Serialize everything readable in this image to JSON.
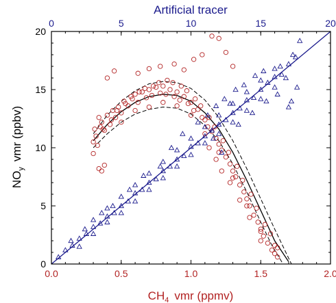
{
  "chart_data": {
    "type": "scatter",
    "top_axis": {
      "label": "Artificial tracer",
      "range": [
        0,
        20
      ],
      "ticks": [
        "0",
        "5",
        "10",
        "15",
        "20"
      ],
      "color": "#1a1a8c"
    },
    "bottom_axis": {
      "label_main": "CH",
      "label_sub": "4",
      "label_rest": "vmr (ppmv)",
      "range": [
        0.0,
        2.0
      ],
      "ticks": [
        "0.0",
        "0.5",
        "1.0",
        "1.5",
        "2.0"
      ],
      "color": "#b22222"
    },
    "left_axis": {
      "label_main": "NO",
      "label_sub": "y",
      "label_rest": "vmr (ppbv)",
      "range": [
        0,
        20
      ],
      "ticks": [
        "0",
        "5",
        "10",
        "15",
        "20"
      ],
      "color": "#000000"
    },
    "series": [
      {
        "marker": "circle",
        "x_axis": "bottom",
        "color": "#b22222",
        "points": [
          [
            0.3,
            10.5
          ],
          [
            0.32,
            11.0
          ],
          [
            0.33,
            10.2
          ],
          [
            0.35,
            11.8
          ],
          [
            0.36,
            12.2
          ],
          [
            0.38,
            11.5
          ],
          [
            0.4,
            12.8
          ],
          [
            0.42,
            12.0
          ],
          [
            0.44,
            13.2
          ],
          [
            0.46,
            12.6
          ],
          [
            0.48,
            13.5
          ],
          [
            0.5,
            13.0
          ],
          [
            0.52,
            14.0
          ],
          [
            0.55,
            13.6
          ],
          [
            0.58,
            14.2
          ],
          [
            0.6,
            14.6
          ],
          [
            0.62,
            13.9
          ],
          [
            0.65,
            14.8
          ],
          [
            0.68,
            14.3
          ],
          [
            0.7,
            15.0
          ],
          [
            0.72,
            14.5
          ],
          [
            0.75,
            15.2
          ],
          [
            0.78,
            14.7
          ],
          [
            0.8,
            15.3
          ],
          [
            0.82,
            14.6
          ],
          [
            0.85,
            15.0
          ],
          [
            0.88,
            14.4
          ],
          [
            0.9,
            14.8
          ],
          [
            0.92,
            14.1
          ],
          [
            0.95,
            14.4
          ],
          [
            0.98,
            13.8
          ],
          [
            1.0,
            13.9
          ],
          [
            1.02,
            13.2
          ],
          [
            1.05,
            13.3
          ],
          [
            1.08,
            12.6
          ],
          [
            1.1,
            12.4
          ],
          [
            1.12,
            11.8
          ],
          [
            1.15,
            11.4
          ],
          [
            1.18,
            10.8
          ],
          [
            1.2,
            10.3
          ],
          [
            1.22,
            9.8
          ],
          [
            1.25,
            9.2
          ],
          [
            1.28,
            8.6
          ],
          [
            1.3,
            8.0
          ],
          [
            1.32,
            7.5
          ],
          [
            1.35,
            6.8
          ],
          [
            1.38,
            6.2
          ],
          [
            1.4,
            5.6
          ],
          [
            1.42,
            5.0
          ],
          [
            1.45,
            4.2
          ],
          [
            1.48,
            3.6
          ],
          [
            1.5,
            3.0
          ],
          [
            1.52,
            2.4
          ],
          [
            1.55,
            1.8
          ],
          [
            1.58,
            1.2
          ],
          [
            1.6,
            0.9
          ],
          [
            1.62,
            1.4
          ],
          [
            1.57,
            2.6
          ],
          [
            1.53,
            3.4
          ],
          [
            1.47,
            4.8
          ],
          [
            1.43,
            6.0
          ],
          [
            1.37,
            7.2
          ],
          [
            1.33,
            8.4
          ],
          [
            1.27,
            9.6
          ],
          [
            1.23,
            10.6
          ],
          [
            1.17,
            11.8
          ],
          [
            1.13,
            12.6
          ],
          [
            1.07,
            13.6
          ],
          [
            1.03,
            14.2
          ],
          [
            0.97,
            14.9
          ],
          [
            0.93,
            15.3
          ],
          [
            0.87,
            15.6
          ],
          [
            0.83,
            15.8
          ],
          [
            0.77,
            15.6
          ],
          [
            0.73,
            15.3
          ],
          [
            0.67,
            15.1
          ],
          [
            0.63,
            14.8
          ],
          [
            0.57,
            14.4
          ],
          [
            0.53,
            13.8
          ],
          [
            0.47,
            13.2
          ],
          [
            0.43,
            12.4
          ],
          [
            0.37,
            11.6
          ],
          [
            0.34,
            8.2
          ],
          [
            0.36,
            8.0
          ],
          [
            0.38,
            8.5
          ],
          [
            0.4,
            16.0
          ],
          [
            0.45,
            16.6
          ],
          [
            0.62,
            16.4
          ],
          [
            0.7,
            16.8
          ],
          [
            0.78,
            17.0
          ],
          [
            0.88,
            17.2
          ],
          [
            0.95,
            16.7
          ],
          [
            1.02,
            17.6
          ],
          [
            1.08,
            18.0
          ],
          [
            1.15,
            19.6
          ],
          [
            1.2,
            19.4
          ],
          [
            1.25,
            18.2
          ],
          [
            1.3,
            17.0
          ],
          [
            1.13,
            10.0
          ],
          [
            1.18,
            9.0
          ],
          [
            1.22,
            8.0
          ],
          [
            1.28,
            7.0
          ],
          [
            1.35,
            5.5
          ],
          [
            1.42,
            4.0
          ],
          [
            1.5,
            2.0
          ],
          [
            1.62,
            0.6
          ],
          [
            0.3,
            9.5
          ],
          [
            0.31,
            11.6
          ],
          [
            0.34,
            12.6
          ],
          [
            0.5,
            12.2
          ],
          [
            0.6,
            13.2
          ],
          [
            0.7,
            13.5
          ],
          [
            0.8,
            13.9
          ],
          [
            0.9,
            13.6
          ],
          [
            1.0,
            12.8
          ],
          [
            1.1,
            11.2
          ],
          [
            1.2,
            9.6
          ],
          [
            1.3,
            7.4
          ],
          [
            1.4,
            5.0
          ],
          [
            1.5,
            2.8
          ],
          [
            1.6,
            1.6
          ]
        ]
      },
      {
        "marker": "triangle",
        "x_axis": "top",
        "color": "#1a1a8c",
        "points": [
          [
            0.5,
            0.6
          ],
          [
            1.0,
            1.2
          ],
          [
            1.5,
            1.6
          ],
          [
            2.0,
            2.2
          ],
          [
            2.5,
            2.6
          ],
          [
            3.0,
            3.2
          ],
          [
            3.5,
            3.5
          ],
          [
            4.0,
            4.1
          ],
          [
            4.5,
            4.4
          ],
          [
            5.0,
            5.0
          ],
          [
            5.5,
            5.4
          ],
          [
            6.0,
            6.1
          ],
          [
            6.5,
            6.4
          ],
          [
            7.0,
            7.0
          ],
          [
            7.5,
            7.3
          ],
          [
            8.0,
            8.0
          ],
          [
            8.5,
            8.4
          ],
          [
            9.0,
            9.0
          ],
          [
            9.5,
            9.3
          ],
          [
            10.0,
            10.1
          ],
          [
            10.5,
            10.4
          ],
          [
            11.0,
            11.0
          ],
          [
            11.5,
            11.5
          ],
          [
            12.0,
            12.0
          ],
          [
            12.5,
            12.4
          ],
          [
            13.0,
            13.0
          ],
          [
            13.5,
            13.4
          ],
          [
            14.0,
            14.1
          ],
          [
            14.5,
            14.3
          ],
          [
            15.0,
            15.0
          ],
          [
            15.5,
            15.6
          ],
          [
            16.0,
            16.1
          ],
          [
            16.5,
            16.3
          ],
          [
            17.0,
            17.2
          ],
          [
            17.5,
            17.8
          ],
          [
            2.0,
            1.5
          ],
          [
            3.0,
            2.6
          ],
          [
            4.0,
            3.6
          ],
          [
            5.0,
            4.4
          ],
          [
            6.0,
            5.4
          ],
          [
            7.0,
            6.4
          ],
          [
            8.0,
            7.4
          ],
          [
            9.0,
            8.4
          ],
          [
            10.0,
            9.4
          ],
          [
            11.0,
            10.4
          ],
          [
            12.0,
            11.2
          ],
          [
            13.0,
            12.2
          ],
          [
            14.0,
            13.2
          ],
          [
            15.0,
            14.2
          ],
          [
            16.0,
            15.2
          ],
          [
            3.0,
            3.8
          ],
          [
            4.0,
            4.8
          ],
          [
            5.0,
            5.8
          ],
          [
            6.0,
            6.8
          ],
          [
            7.0,
            7.8
          ],
          [
            8.0,
            8.8
          ],
          [
            9.0,
            9.8
          ],
          [
            10.0,
            10.8
          ],
          [
            11.0,
            11.8
          ],
          [
            12.0,
            12.8
          ],
          [
            13.0,
            13.8
          ],
          [
            14.0,
            14.8
          ],
          [
            15.0,
            15.8
          ],
          [
            16.0,
            16.8
          ],
          [
            10.5,
            12.2
          ],
          [
            11.2,
            12.8
          ],
          [
            11.8,
            13.6
          ],
          [
            12.4,
            14.2
          ],
          [
            13.2,
            15.0
          ],
          [
            13.8,
            15.4
          ],
          [
            14.6,
            16.2
          ],
          [
            15.2,
            16.6
          ],
          [
            16.4,
            17.0
          ],
          [
            17.2,
            14.0
          ],
          [
            17.6,
            15.2
          ],
          [
            17.0,
            13.5
          ],
          [
            16.8,
            16.0
          ],
          [
            17.3,
            18.0
          ],
          [
            17.8,
            19.2
          ],
          [
            15.4,
            14.0
          ],
          [
            16.2,
            14.6
          ],
          [
            12.8,
            13.8
          ],
          [
            9.4,
            11.2
          ],
          [
            8.6,
            10.0
          ],
          [
            7.8,
            8.4
          ],
          [
            6.6,
            7.6
          ],
          [
            5.6,
            6.4
          ],
          [
            4.4,
            5.0
          ],
          [
            3.6,
            4.4
          ],
          [
            2.4,
            3.0
          ],
          [
            1.4,
            2.0
          ],
          [
            12.2,
            9.6
          ],
          [
            11.6,
            10.8
          ],
          [
            13.4,
            12.0
          ],
          [
            14.4,
            13.0
          ]
        ]
      }
    ],
    "curves": [
      {
        "x_axis": "bottom",
        "color": "#000000",
        "points": [
          [
            0.3,
            10.6
          ],
          [
            0.4,
            12.0
          ],
          [
            0.5,
            13.1
          ],
          [
            0.6,
            13.9
          ],
          [
            0.7,
            14.4
          ],
          [
            0.8,
            14.6
          ],
          [
            0.9,
            14.5
          ],
          [
            1.0,
            14.0
          ],
          [
            1.1,
            13.0
          ],
          [
            1.2,
            11.6
          ],
          [
            1.3,
            9.6
          ],
          [
            1.4,
            7.2
          ],
          [
            1.5,
            4.6
          ],
          [
            1.6,
            2.0
          ],
          [
            1.7,
            0.2
          ]
        ]
      },
      {
        "x_axis": "bottom",
        "color": "#000000",
        "dashed": true,
        "points": [
          [
            0.3,
            11.2
          ],
          [
            0.4,
            12.8
          ],
          [
            0.5,
            14.0
          ],
          [
            0.6,
            14.9
          ],
          [
            0.7,
            15.5
          ],
          [
            0.8,
            15.7
          ],
          [
            0.9,
            15.6
          ],
          [
            1.0,
            15.1
          ],
          [
            1.1,
            14.1
          ],
          [
            1.2,
            12.6
          ],
          [
            1.3,
            10.6
          ],
          [
            1.4,
            8.2
          ],
          [
            1.5,
            5.6
          ],
          [
            1.6,
            3.0
          ],
          [
            1.72,
            0.0
          ]
        ]
      },
      {
        "x_axis": "bottom",
        "color": "#000000",
        "dashed": true,
        "points": [
          [
            0.3,
            10.0
          ],
          [
            0.4,
            11.2
          ],
          [
            0.5,
            12.2
          ],
          [
            0.6,
            12.9
          ],
          [
            0.7,
            13.3
          ],
          [
            0.8,
            13.5
          ],
          [
            0.9,
            13.4
          ],
          [
            1.0,
            12.9
          ],
          [
            1.1,
            11.9
          ],
          [
            1.2,
            10.6
          ],
          [
            1.3,
            8.6
          ],
          [
            1.4,
            6.2
          ],
          [
            1.5,
            3.6
          ],
          [
            1.58,
            1.6
          ],
          [
            1.66,
            0.0
          ]
        ]
      },
      {
        "x_axis": "top",
        "color": "#1a1a8c",
        "points": [
          [
            0,
            0
          ],
          [
            20,
            20
          ]
        ]
      }
    ]
  }
}
